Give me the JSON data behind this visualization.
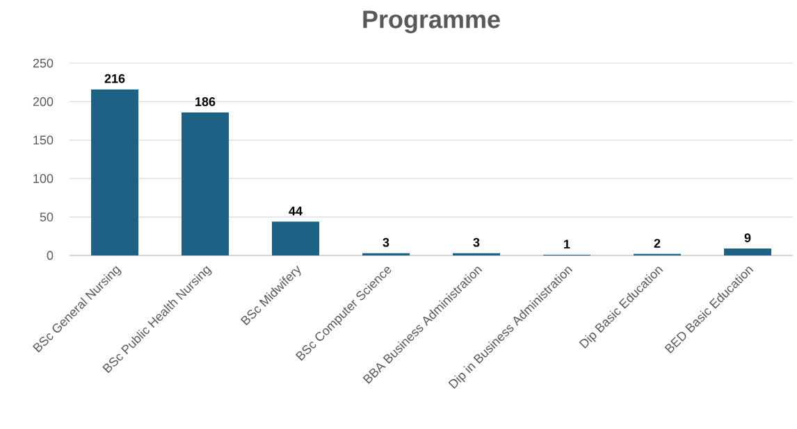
{
  "chart_data": {
    "type": "bar",
    "title": "Programme",
    "categories": [
      "BSc General Nursing",
      "BSc Public Health Nursing",
      "BSc Midwifery",
      "BSc Computer Science",
      "BBA Business Administration",
      "Dip in Business Administration",
      "Dip Basic Education",
      "BED Basic Education"
    ],
    "values": [
      216,
      186,
      44,
      3,
      3,
      1,
      2,
      9
    ],
    "color": "#1d6184",
    "ylim": [
      0,
      250
    ],
    "yticks": [
      0,
      50,
      100,
      150,
      200,
      250
    ],
    "grid": "y",
    "data_labels": true
  }
}
